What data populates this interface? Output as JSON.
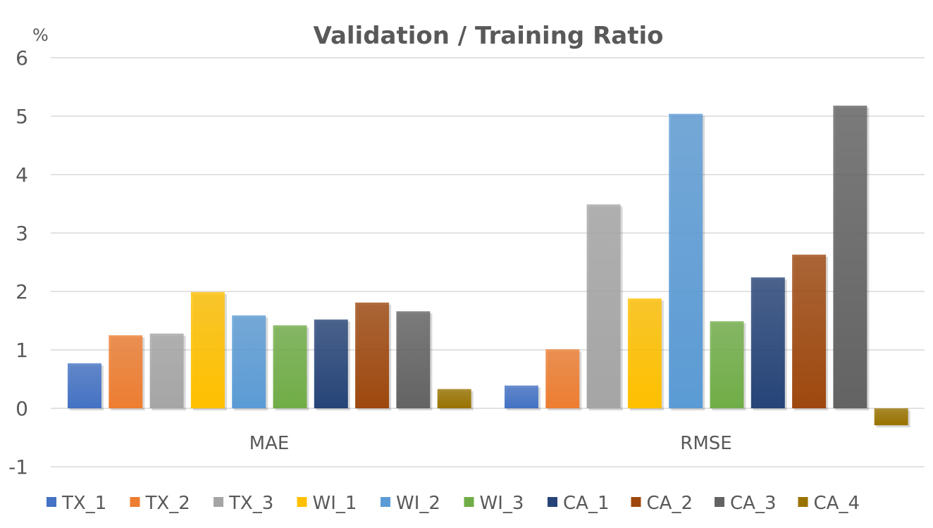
{
  "chart_data": {
    "type": "bar",
    "title": "Validation / Training Ratio",
    "ylabel": "%",
    "ylim": [
      -1,
      6
    ],
    "yticks": [
      "-1",
      "0",
      "1",
      "2",
      "3",
      "4",
      "5",
      "6"
    ],
    "grid": true,
    "legend_position": "bottom",
    "categories": [
      "MAE",
      "RMSE"
    ],
    "series": [
      {
        "name": "TX_1",
        "color": "#4472C4",
        "values": [
          0.77,
          0.39
        ]
      },
      {
        "name": "TX_2",
        "color": "#ED7D31",
        "values": [
          1.25,
          1.01
        ]
      },
      {
        "name": "TX_3",
        "color": "#A5A5A5",
        "values": [
          1.28,
          3.49
        ]
      },
      {
        "name": "WI_1",
        "color": "#FFC000",
        "values": [
          1.99,
          1.88
        ]
      },
      {
        "name": "WI_2",
        "color": "#5B9BD5",
        "values": [
          1.59,
          5.04
        ]
      },
      {
        "name": "WI_3",
        "color": "#70AD47",
        "values": [
          1.42,
          1.49
        ]
      },
      {
        "name": "CA_1",
        "color": "#264478",
        "values": [
          1.52,
          2.24
        ]
      },
      {
        "name": "CA_2",
        "color": "#9E480E",
        "values": [
          1.81,
          2.63
        ]
      },
      {
        "name": "CA_3",
        "color": "#636363",
        "values": [
          1.66,
          5.18
        ]
      },
      {
        "name": "CA_4",
        "color": "#997300",
        "values": [
          0.33,
          -0.29
        ]
      }
    ]
  }
}
